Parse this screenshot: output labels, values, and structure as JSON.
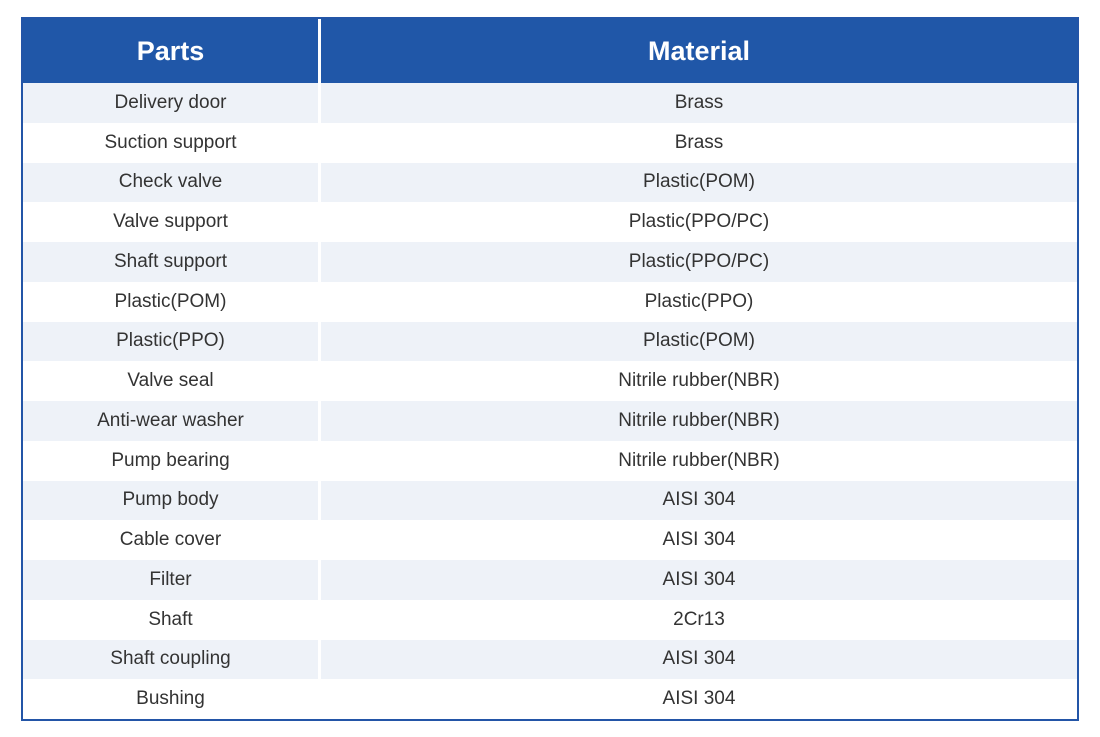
{
  "table": {
    "header": {
      "parts_label": "Parts",
      "material_label": "Material"
    },
    "rows": [
      {
        "part": "Delivery door",
        "material": "Brass"
      },
      {
        "part": "Suction support",
        "material": "Brass"
      },
      {
        "part": "Check valve",
        "material": "Plastic(POM)"
      },
      {
        "part": "Valve support",
        "material": "Plastic(PPO/PC)"
      },
      {
        "part": "Shaft support",
        "material": "Plastic(PPO/PC)"
      },
      {
        "part": "Plastic(POM)",
        "material": "Plastic(PPO)"
      },
      {
        "part": "Plastic(PPO)",
        "material": "Plastic(POM)"
      },
      {
        "part": "Valve seal",
        "material": "Nitrile rubber(NBR)"
      },
      {
        "part": "Anti-wear washer",
        "material": "Nitrile rubber(NBR)"
      },
      {
        "part": "Pump bearing",
        "material": "Nitrile rubber(NBR)"
      },
      {
        "part": "Pump body",
        "material": "AISI 304"
      },
      {
        "part": "Cable cover",
        "material": "AISI 304"
      },
      {
        "part": "Filter",
        "material": "AISI 304"
      },
      {
        "part": "Shaft",
        "material": "2Cr13"
      },
      {
        "part": "Shaft coupling",
        "material": "AISI 304"
      },
      {
        "part": "Bushing",
        "material": "AISI 304"
      }
    ]
  },
  "colors": {
    "header_bg": "#2057a8",
    "header_text": "#ffffff",
    "border": "#2355a7",
    "stripe": "#eef2f8",
    "row_bg": "#ffffff",
    "body_text": "#333333",
    "divider": "#ffffff"
  }
}
